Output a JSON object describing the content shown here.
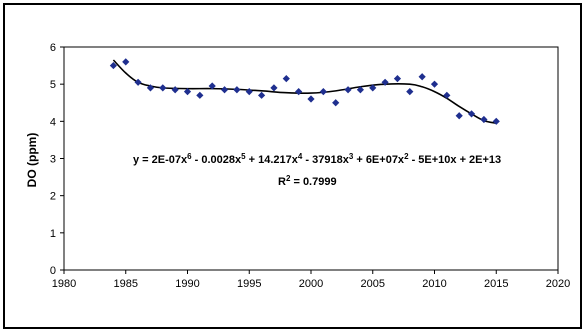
{
  "chart_data": {
    "type": "scatter",
    "title": "",
    "xlabel": "",
    "ylabel": "DO (ppm)",
    "xlim": [
      1980,
      2020
    ],
    "ylim": [
      0,
      6
    ],
    "x_ticks": [
      "1980",
      "1985",
      "1990",
      "1995",
      "2000",
      "2005",
      "2010",
      "2015",
      "2020"
    ],
    "y_ticks": [
      "0",
      "1",
      "2",
      "3",
      "4",
      "5",
      "6"
    ],
    "grid": false,
    "legend": "none",
    "marker_color": "#1f2f8f",
    "trendline_color": "#000000",
    "series": [
      {
        "x": [
          1984,
          1985,
          1986,
          1987,
          1988,
          1989,
          1990,
          1991,
          1992,
          1993,
          1994,
          1995,
          1996,
          1997,
          1998,
          1999,
          2000,
          2001,
          2002,
          2003,
          2004,
          2005,
          2006,
          2007,
          2008,
          2009,
          2010,
          2011,
          2012,
          2013,
          2014,
          2015
        ],
        "y": [
          5.5,
          5.6,
          5.05,
          4.9,
          4.9,
          4.85,
          4.8,
          4.7,
          4.95,
          4.85,
          4.85,
          4.8,
          4.7,
          4.9,
          5.15,
          4.8,
          4.6,
          4.8,
          4.5,
          4.85,
          4.85,
          4.9,
          5.05,
          5.15,
          4.8,
          5.2,
          5.0,
          4.7,
          4.15,
          4.2,
          4.05,
          4.0
        ]
      }
    ],
    "trendline": {
      "type": "polynomial",
      "order": 6,
      "x": [
        1984,
        1985,
        1986,
        1987,
        1988,
        1990,
        1992,
        1994,
        1996,
        1998,
        2000,
        2002,
        2004,
        2006,
        2008,
        2009,
        2010,
        2011,
        2012,
        2013,
        2014,
        2015
      ],
      "y": [
        5.65,
        5.3,
        5.05,
        4.95,
        4.9,
        4.88,
        4.88,
        4.86,
        4.82,
        4.77,
        4.76,
        4.82,
        4.93,
        5.0,
        5.0,
        4.93,
        4.8,
        4.62,
        4.4,
        4.2,
        4.02,
        3.95
      ]
    },
    "annotations": {
      "equation_parts": {
        "a": "y = 2E-07x",
        "p6": "6",
        "b": " - 0.0028x",
        "p5": "5",
        "c": " + 14.217x",
        "p4": "4",
        "d": " - 37918x",
        "p3": "3",
        "e": " + 6E+07x",
        "p2": "2",
        "f": " - 5E+10x + 2E+13"
      },
      "r2_parts": {
        "a": "R",
        "sup": "2",
        "b": " = 0.7999"
      }
    }
  }
}
